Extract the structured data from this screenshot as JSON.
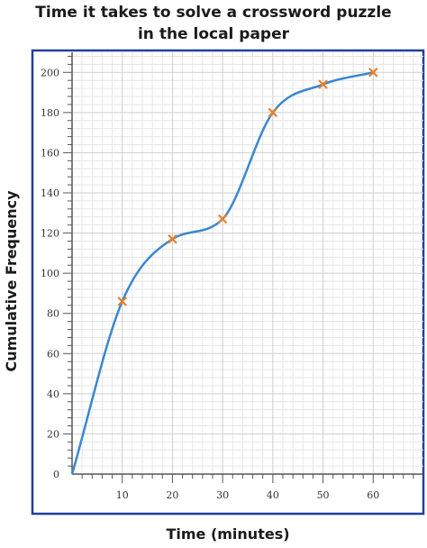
{
  "chart_data": {
    "type": "line",
    "title_line1": "Time it takes to solve a crossword puzzle",
    "title_line2": "in the local paper",
    "xlabel": "Time (minutes)",
    "ylabel": "Cumulative Frequency",
    "xlim": [
      0,
      70
    ],
    "ylim": [
      0,
      210
    ],
    "x_ticks": [
      10,
      20,
      30,
      40,
      50,
      60
    ],
    "y_ticks": [
      0,
      20,
      40,
      60,
      80,
      100,
      120,
      140,
      160,
      180,
      200
    ],
    "grid": true,
    "curve_color": "#3a87d0",
    "marker_color": "#e8802a",
    "frame_color": "#1f3f9f",
    "series": [
      {
        "x": [
          0,
          10,
          20,
          30,
          40,
          50,
          60
        ],
        "values": [
          0,
          86,
          117,
          127,
          180,
          194,
          200
        ]
      }
    ]
  }
}
